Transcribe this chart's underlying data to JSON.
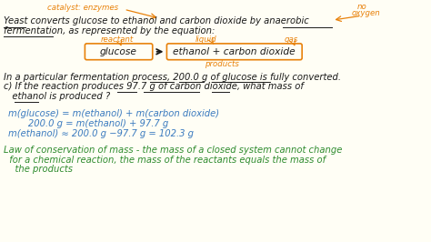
{
  "bg_color": "#fffef5",
  "black": "#1a1a1a",
  "orange": "#e8820c",
  "blue": "#3a7abf",
  "green": "#2e8b2e",
  "title_line1": "Yeast converts glucose to ethanol and carbon dioxide by anaerobic",
  "title_line2": "fermentation, as represented by the equation:",
  "catalyst_label": "catalyst: enzymes",
  "no_oxygen_line1": "no",
  "no_oxygen_line2": "oxygen",
  "reactant_label": "reactant",
  "liquid_label": "liquid",
  "gas_label": "gas",
  "equation_left": "glucose",
  "equation_right": "ethanol + carbon dioxide",
  "products_label": "products",
  "question_line1": "In a particular fermentation process, 200.0 g of glucose is fully converted.",
  "question_line2": "c) If the reaction produces 97.7 g of carbon dioxide, what mass of",
  "question_line3": "   ethanol is produced ?",
  "calc_line1": "m(glucose) = m(ethanol) + m(carbon dioxide)",
  "calc_line2": "       200.0 g = m(ethanol) + 97.7 g",
  "calc_line3": "m(ethanol) ≈ 200.0 g −97.7 g = 102.3 g",
  "law_line1": "Law of conservation of mass - the mass of a closed system cannot change",
  "law_line2": "  for a chemical reaction, the mass of the reactants equals the mass of",
  "law_line3": "    the products"
}
